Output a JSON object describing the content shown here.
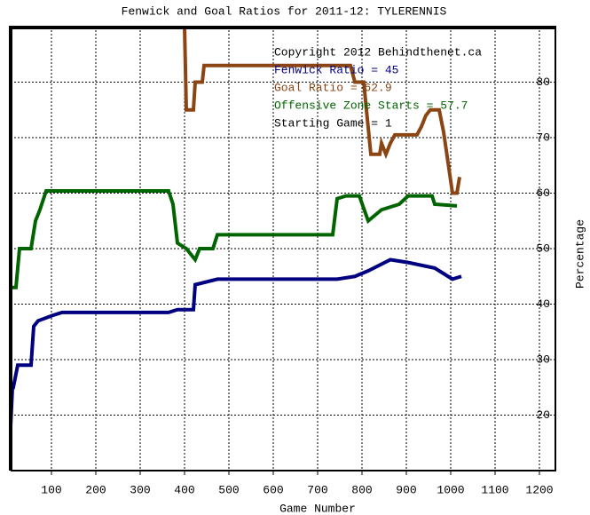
{
  "chart_data": {
    "type": "line",
    "title": "Fenwick and Goal Ratios for 2011-12: TYLERENNIS",
    "x_label": "Game Number",
    "y_label": "Percentage",
    "annotations": [
      {
        "text": "Copyright 2012 Behindthenet.ca",
        "color": "#000000"
      },
      {
        "text": "Fenwick Ratio = 45",
        "color": "#000080"
      },
      {
        "text": "Goal Ratio = 62.9",
        "color": "#8b4513"
      },
      {
        "text": "Offensive Zone Starts = 57.7",
        "color": "#006400"
      },
      {
        "text": "Starting Game = 1",
        "color": "#000000"
      }
    ],
    "xlim": [
      8,
      1236
    ],
    "ylim": [
      10,
      90
    ],
    "xticks": [
      100,
      200,
      300,
      400,
      500,
      600,
      700,
      800,
      900,
      1000,
      1100,
      1200
    ],
    "yticks": [
      20,
      30,
      40,
      50,
      60,
      70,
      80
    ],
    "grid": true,
    "series": [
      {
        "color": "#000080",
        "x": [
          8,
          12,
          14,
          24,
          54,
          60,
          70,
          104,
          124,
          364,
          384,
          420,
          424,
          474,
          744,
          784,
          814,
          864,
          904,
          964,
          984,
          1004,
          1024
        ],
        "values": [
          18,
          25,
          25,
          29,
          29,
          36,
          37,
          38,
          38.5,
          38.5,
          39,
          39,
          43.5,
          44.5,
          44.5,
          45,
          46,
          48,
          47.5,
          46.5,
          45.5,
          44.5,
          45
        ]
      },
      {
        "color": "#8b4513",
        "x": [
          400,
          404,
          420,
          424,
          440,
          444,
          774,
          784,
          804,
          810,
          820,
          840,
          844,
          854,
          864,
          874,
          924,
          934,
          944,
          954,
          974,
          984,
          1004,
          1014,
          1020
        ],
        "values": [
          90,
          75,
          75,
          80,
          80,
          83,
          83,
          80,
          80,
          75,
          67,
          67,
          69,
          67,
          69,
          70.5,
          70.5,
          72,
          74,
          75,
          75,
          71,
          60,
          60,
          62.9
        ]
      },
      {
        "color": "#006400",
        "x": [
          8,
          20,
          28,
          54,
          64,
          74,
          88,
          364,
          374,
          384,
          404,
          424,
          434,
          464,
          474,
          734,
          744,
          764,
          794,
          814,
          844,
          884,
          904,
          958,
          964,
          1014
        ],
        "values": [
          43,
          43,
          50,
          50,
          55,
          57,
          60.4,
          60.4,
          58,
          51,
          50,
          48,
          50,
          50,
          52.5,
          52.5,
          59,
          59.5,
          59.5,
          55,
          57,
          58,
          59.5,
          59.5,
          58,
          57.7
        ]
      }
    ]
  }
}
